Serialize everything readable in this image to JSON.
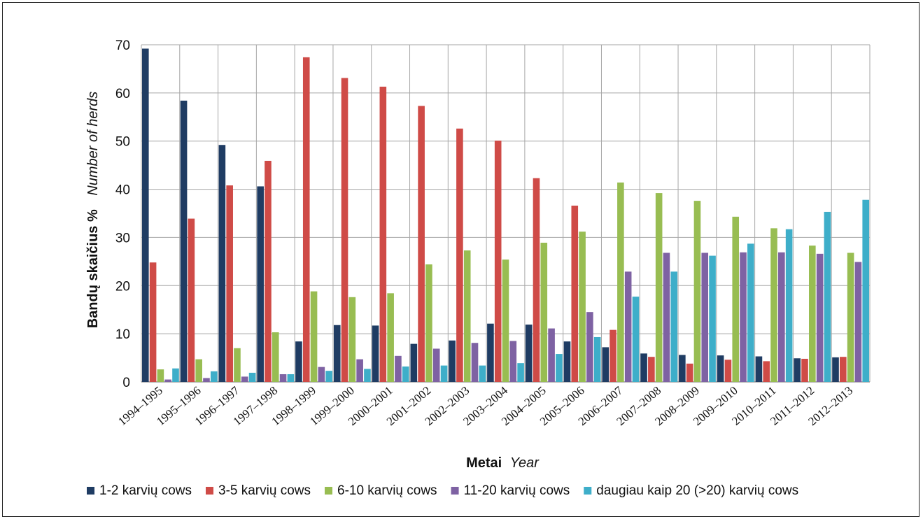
{
  "chart_data": {
    "type": "bar",
    "categories": [
      "1994–1995",
      "1995–1996",
      "1996–1997",
      "1997–1998",
      "1998–1999",
      "1999–2000",
      "2000–2001",
      "2001–2002",
      "2002–2003",
      "2003–2004",
      "2004–2005",
      "2005–2006",
      "2006–2007",
      "2007–2008",
      "2008–2009",
      "2009–2010",
      "2010–2011",
      "2011–2012",
      "2012–2013"
    ],
    "series": [
      {
        "name": "1-2 karvių cows",
        "color": "#1f3c63",
        "values": [
          69.2,
          58.4,
          49.2,
          40.6,
          8.4,
          11.8,
          11.7,
          7.9,
          8.6,
          12.1,
          11.9,
          8.4,
          7.2,
          5.9,
          5.6,
          5.5,
          5.3,
          4.9,
          5.1
        ]
      },
      {
        "name": "3-5 karvių cows",
        "color": "#cf4b47",
        "values": [
          24.8,
          33.9,
          40.8,
          45.9,
          67.4,
          63.1,
          61.3,
          57.3,
          52.6,
          50.1,
          42.3,
          36.6,
          10.8,
          5.2,
          3.8,
          4.6,
          4.3,
          4.8,
          5.2
        ]
      },
      {
        "name": "6-10 karvių cows",
        "color": "#98bd52",
        "values": [
          2.6,
          4.7,
          7.0,
          10.3,
          18.8,
          17.6,
          18.4,
          24.4,
          27.3,
          25.4,
          28.9,
          31.2,
          41.4,
          39.2,
          37.6,
          34.3,
          31.9,
          28.3,
          26.8
        ]
      },
      {
        "name": "11-20 karvių cows",
        "color": "#7e62a3",
        "values": [
          0.5,
          0.8,
          1.1,
          1.6,
          3.1,
          4.7,
          5.4,
          6.9,
          8.1,
          8.5,
          11.1,
          14.5,
          22.9,
          26.8,
          26.8,
          26.9,
          26.9,
          26.6,
          24.9
        ]
      },
      {
        "name": "daugiau kaip 20 (>20) karvių cows",
        "color": "#3eaec9",
        "values": [
          2.8,
          2.2,
          1.9,
          1.6,
          2.3,
          2.7,
          3.2,
          3.4,
          3.4,
          3.9,
          5.8,
          9.3,
          17.7,
          22.9,
          26.2,
          28.7,
          31.7,
          35.3,
          37.8
        ]
      }
    ],
    "ylim": [
      0,
      70
    ],
    "yticks": [
      0,
      10,
      20,
      30,
      40,
      50,
      60,
      70
    ],
    "ylabel_bold": "Bandų skaičius %",
    "ylabel_italic": "Number of herds",
    "xlabel_bold": "Metai",
    "xlabel_italic": "Year",
    "grid": true,
    "legend": "bottom"
  }
}
